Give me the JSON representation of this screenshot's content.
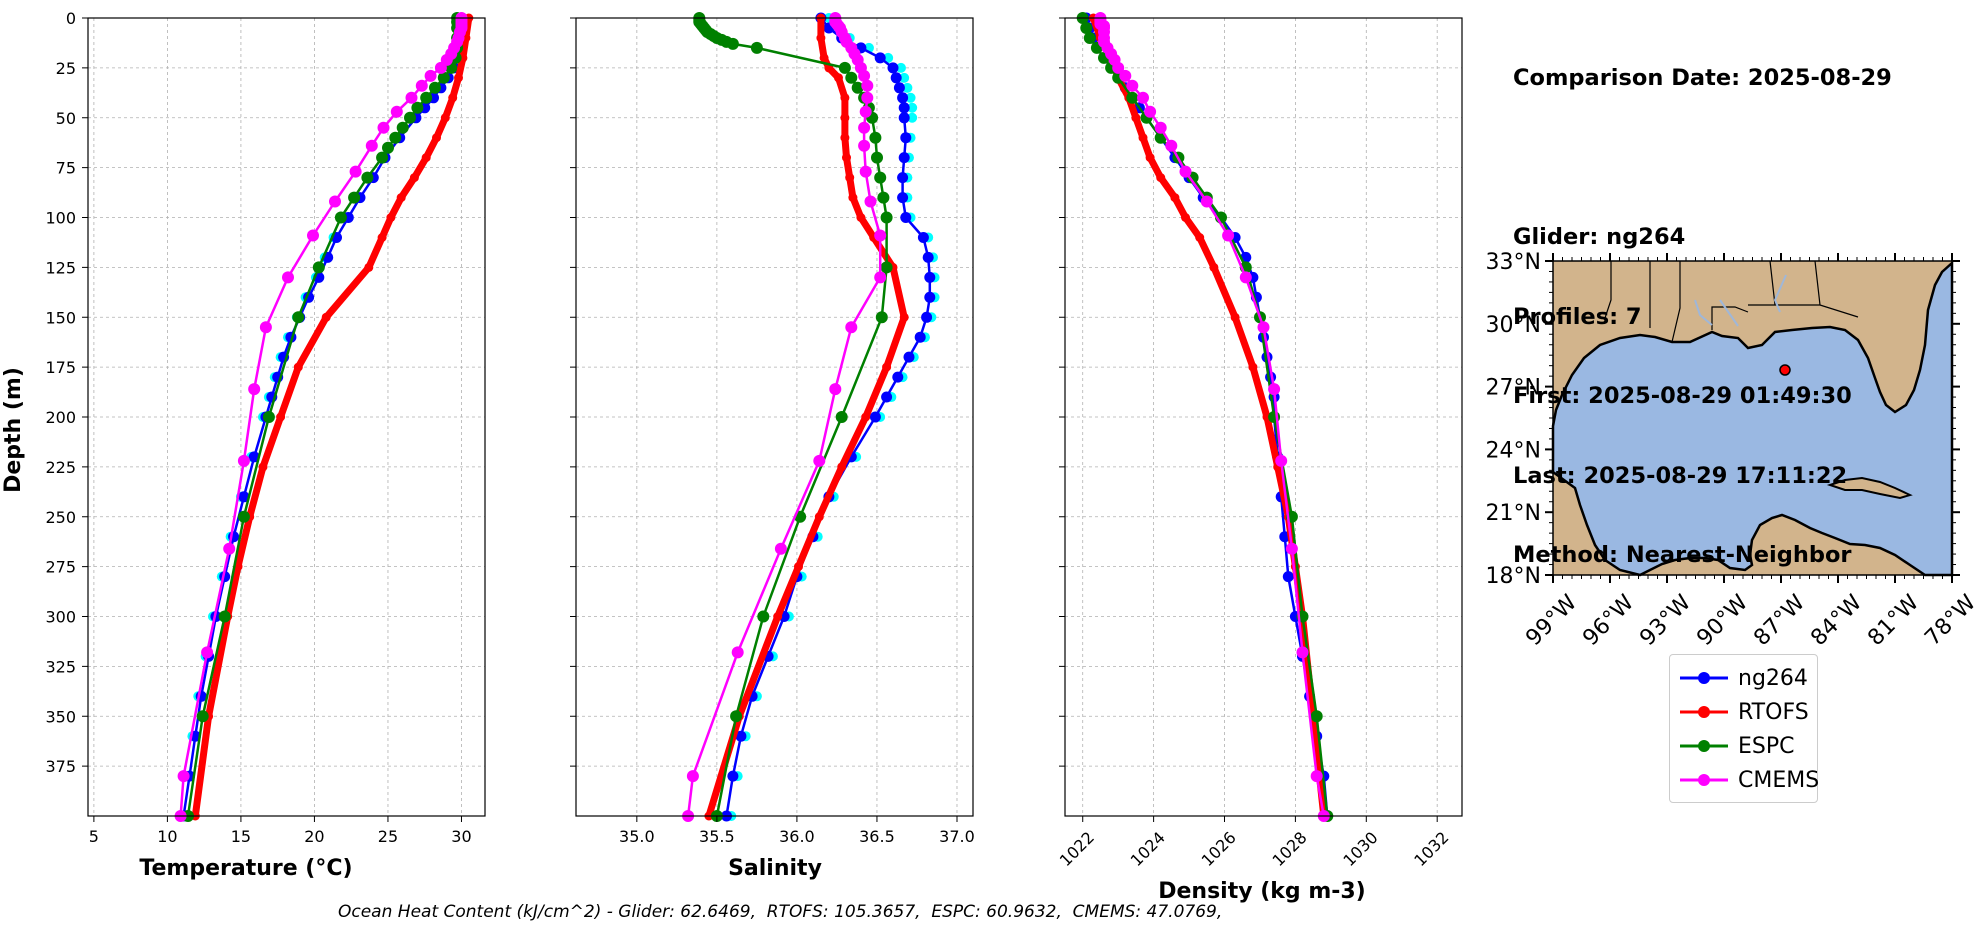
{
  "chart_data": [
    {
      "type": "line",
      "xlabel": "Temperature (°C)",
      "ylabel": "Depth (m)",
      "xlim": [
        4.6,
        31.6
      ],
      "ylim": [
        400,
        0
      ],
      "xticks": [
        "5",
        "10",
        "15",
        "20",
        "25",
        "30"
      ],
      "yticks": [
        "0",
        "25",
        "50",
        "75",
        "100",
        "125",
        "150",
        "175",
        "200",
        "225",
        "250",
        "275",
        "300",
        "325",
        "350",
        "375"
      ],
      "grid": true,
      "series": [
        {
          "name": "ng264",
          "color": "#0000ff",
          "depth": [
            1,
            5,
            10,
            15,
            20,
            25,
            30,
            35,
            40,
            45,
            50,
            60,
            70,
            80,
            90,
            100,
            110,
            120,
            130,
            140,
            150,
            160,
            170,
            180,
            190,
            200,
            220,
            240,
            260,
            280,
            300,
            320,
            340,
            360,
            380,
            400
          ],
          "values": [
            30.2,
            30.2,
            30.1,
            30.0,
            29.8,
            29.5,
            29.1,
            28.6,
            28.1,
            27.5,
            26.9,
            25.8,
            24.8,
            24.0,
            23.1,
            22.3,
            21.5,
            20.9,
            20.3,
            19.6,
            19.0,
            18.4,
            17.9,
            17.5,
            17.1,
            16.7,
            15.9,
            15.2,
            14.5,
            13.9,
            13.3,
            12.8,
            12.3,
            11.9,
            11.5,
            11.1
          ]
        },
        {
          "name": "RTOFS",
          "color": "#ff0000",
          "depth": [
            0,
            10,
            20,
            30,
            40,
            50,
            60,
            70,
            80,
            90,
            100,
            110,
            125,
            150,
            175,
            200,
            225,
            250,
            275,
            300,
            350,
            400
          ],
          "values": [
            30.5,
            30.3,
            30.1,
            29.8,
            29.4,
            28.9,
            28.3,
            27.6,
            26.8,
            25.9,
            25.2,
            24.6,
            23.7,
            20.8,
            18.9,
            17.7,
            16.5,
            15.6,
            14.8,
            14.1,
            12.8,
            11.9
          ]
        },
        {
          "name": "ESPC",
          "color": "#008000",
          "depth": [
            0,
            2,
            5,
            10,
            15,
            20,
            25,
            30,
            35,
            40,
            45,
            50,
            55,
            60,
            65,
            70,
            80,
            90,
            100,
            125,
            150,
            200,
            250,
            300,
            350,
            400
          ],
          "values": [
            29.7,
            29.7,
            29.7,
            29.7,
            29.7,
            29.6,
            29.3,
            28.8,
            28.2,
            27.6,
            27.0,
            26.5,
            26.0,
            25.5,
            25.0,
            24.6,
            23.6,
            22.7,
            21.8,
            20.3,
            18.9,
            16.9,
            15.2,
            13.9,
            12.4,
            11.4
          ]
        },
        {
          "name": "CMEMS",
          "color": "#ff00ff",
          "depth": [
            0,
            1,
            2,
            3,
            4,
            5,
            7,
            10,
            12,
            15,
            18,
            21,
            25,
            29,
            34,
            40,
            47,
            55,
            64,
            77,
            92,
            109,
            130,
            155,
            186,
            222,
            266,
            318,
            380,
            400
          ],
          "values": [
            30.0,
            30.0,
            30.0,
            30.0,
            30.0,
            30.0,
            29.9,
            29.8,
            29.7,
            29.5,
            29.3,
            29.0,
            28.6,
            27.9,
            27.3,
            26.6,
            25.6,
            24.7,
            23.9,
            22.8,
            21.4,
            19.9,
            18.2,
            16.7,
            15.9,
            15.2,
            14.2,
            12.7,
            11.1,
            10.9
          ]
        }
      ]
    },
    {
      "type": "line",
      "xlabel": "Salinity",
      "xlim": [
        34.62,
        37.1
      ],
      "ylim": [
        400,
        0
      ],
      "xticks": [
        "35.0",
        "35.5",
        "36.0",
        "36.5",
        "37.0"
      ],
      "grid": true,
      "series": [
        {
          "name": "ng264",
          "color": "#0000ff",
          "depth": [
            0,
            5,
            10,
            15,
            20,
            25,
            30,
            35,
            40,
            45,
            50,
            60,
            70,
            80,
            90,
            100,
            110,
            120,
            130,
            140,
            150,
            160,
            170,
            180,
            190,
            200,
            220,
            240,
            260,
            280,
            300,
            320,
            340,
            360,
            380,
            400
          ],
          "values": [
            36.15,
            36.2,
            36.28,
            36.4,
            36.52,
            36.6,
            36.62,
            36.64,
            36.66,
            36.67,
            36.67,
            36.68,
            36.67,
            36.66,
            36.66,
            36.68,
            36.79,
            36.82,
            36.83,
            36.83,
            36.81,
            36.77,
            36.7,
            36.63,
            36.56,
            36.49,
            36.34,
            36.2,
            36.1,
            36.0,
            35.92,
            35.82,
            35.72,
            35.65,
            35.6,
            35.56
          ]
        },
        {
          "name": "RTOFS",
          "color": "#ff0000",
          "depth": [
            0,
            10,
            20,
            25,
            30,
            40,
            50,
            60,
            70,
            80,
            90,
            100,
            110,
            125,
            150,
            175,
            200,
            225,
            250,
            275,
            300,
            350,
            400
          ],
          "values": [
            36.15,
            36.15,
            36.17,
            36.2,
            36.26,
            36.3,
            36.3,
            36.3,
            36.31,
            36.33,
            36.35,
            36.4,
            36.48,
            36.6,
            36.67,
            36.56,
            36.43,
            36.28,
            36.14,
            36.01,
            35.88,
            35.64,
            35.45
          ]
        },
        {
          "name": "ESPC",
          "color": "#008000",
          "depth": [
            0,
            1,
            2,
            3,
            4,
            5,
            6,
            7,
            8,
            9,
            10,
            11,
            12,
            13,
            15,
            25,
            30,
            35,
            40,
            45,
            50,
            60,
            70,
            80,
            90,
            100,
            125,
            150,
            200,
            250,
            300,
            350,
            400
          ],
          "values": [
            35.39,
            35.39,
            35.39,
            35.4,
            35.41,
            35.42,
            35.43,
            35.44,
            35.46,
            35.48,
            35.5,
            35.53,
            35.56,
            35.6,
            35.75,
            36.3,
            36.34,
            36.38,
            36.42,
            36.45,
            36.47,
            36.49,
            36.5,
            36.52,
            36.54,
            36.56,
            36.56,
            36.53,
            36.28,
            36.02,
            35.79,
            35.62,
            35.5
          ]
        },
        {
          "name": "CMEMS",
          "color": "#ff00ff",
          "depth": [
            0,
            1,
            2,
            3,
            4,
            5,
            7,
            10,
            12,
            15,
            18,
            21,
            25,
            29,
            34,
            40,
            47,
            55,
            64,
            77,
            92,
            109,
            130,
            155,
            186,
            222,
            266,
            318,
            380,
            400
          ],
          "values": [
            36.24,
            36.24,
            36.24,
            36.25,
            36.26,
            36.27,
            36.28,
            36.3,
            36.31,
            36.34,
            36.36,
            36.38,
            36.4,
            36.42,
            36.44,
            36.44,
            36.43,
            36.42,
            36.42,
            36.43,
            36.46,
            36.52,
            36.52,
            36.34,
            36.24,
            36.14,
            35.9,
            35.63,
            35.35,
            35.32
          ]
        }
      ]
    },
    {
      "type": "line",
      "xlabel": "Density (kg m-3)",
      "xlim": [
        1021.5,
        1032.7
      ],
      "ylim": [
        400,
        0
      ],
      "xticks": [
        "1022",
        "1024",
        "1026",
        "1028",
        "1030",
        "1032"
      ],
      "grid": true,
      "series": [
        {
          "name": "ng264",
          "color": "#0000ff",
          "depth": [
            0,
            5,
            10,
            15,
            20,
            25,
            30,
            35,
            40,
            45,
            50,
            60,
            70,
            80,
            90,
            100,
            110,
            120,
            130,
            140,
            150,
            160,
            170,
            180,
            190,
            200,
            220,
            240,
            260,
            280,
            300,
            320,
            340,
            360,
            380,
            400
          ],
          "values": [
            1022.1,
            1022.2,
            1022.3,
            1022.4,
            1022.6,
            1022.8,
            1023.0,
            1023.2,
            1023.4,
            1023.6,
            1023.8,
            1024.2,
            1024.6,
            1025.0,
            1025.4,
            1025.9,
            1026.3,
            1026.6,
            1026.8,
            1026.9,
            1027.0,
            1027.1,
            1027.2,
            1027.3,
            1027.4,
            1027.4,
            1027.5,
            1027.6,
            1027.7,
            1027.8,
            1028.0,
            1028.2,
            1028.4,
            1028.6,
            1028.8,
            1028.9
          ]
        },
        {
          "name": "RTOFS",
          "color": "#ff0000",
          "depth": [
            0,
            10,
            20,
            25,
            30,
            40,
            50,
            60,
            70,
            80,
            90,
            100,
            110,
            125,
            150,
            175,
            200,
            225,
            250,
            275,
            300,
            350,
            400
          ],
          "values": [
            1022.3,
            1022.5,
            1022.8,
            1022.9,
            1023.0,
            1023.3,
            1023.5,
            1023.7,
            1023.9,
            1024.2,
            1024.6,
            1024.9,
            1025.3,
            1025.7,
            1026.3,
            1026.8,
            1027.2,
            1027.5,
            1027.8,
            1028.0,
            1028.2,
            1028.5,
            1028.8
          ]
        },
        {
          "name": "ESPC",
          "color": "#008000",
          "depth": [
            0,
            5,
            10,
            15,
            20,
            25,
            30,
            40,
            50,
            60,
            70,
            80,
            90,
            100,
            125,
            150,
            200,
            250,
            300,
            350,
            400
          ],
          "values": [
            1022.0,
            1022.1,
            1022.2,
            1022.4,
            1022.6,
            1022.8,
            1023.0,
            1023.4,
            1023.8,
            1024.2,
            1024.7,
            1025.1,
            1025.5,
            1025.9,
            1026.6,
            1027.0,
            1027.4,
            1027.9,
            1028.2,
            1028.6,
            1028.9
          ]
        },
        {
          "name": "CMEMS",
          "color": "#ff00ff",
          "depth": [
            0,
            1,
            2,
            3,
            4,
            5,
            7,
            10,
            12,
            15,
            18,
            21,
            25,
            29,
            34,
            40,
            47,
            55,
            64,
            77,
            92,
            109,
            130,
            155,
            186,
            222,
            266,
            318,
            380,
            400
          ],
          "values": [
            1022.5,
            1022.5,
            1022.5,
            1022.5,
            1022.6,
            1022.6,
            1022.6,
            1022.6,
            1022.6,
            1022.7,
            1022.8,
            1022.9,
            1023.0,
            1023.2,
            1023.4,
            1023.7,
            1023.9,
            1024.2,
            1024.5,
            1024.9,
            1025.5,
            1026.1,
            1026.6,
            1027.1,
            1027.4,
            1027.6,
            1027.9,
            1028.2,
            1028.6,
            1028.8
          ]
        }
      ]
    }
  ],
  "info": {
    "comparison": "Comparison Date: 2025-08-29",
    "glider": "Glider: ng264",
    "profiles": "Profiles: 7",
    "first": "First: 2025-08-29 01:49:30",
    "last": "Last: 2025-08-29 17:11:22",
    "method": "Method: Nearest-Neighbor"
  },
  "map": {
    "lat_ticks": [
      "33°N",
      "30°N",
      "27°N",
      "24°N",
      "21°N",
      "18°N"
    ],
    "lon_ticks": [
      "99°W",
      "96°W",
      "93°W",
      "90°W",
      "87°W",
      "84°W",
      "81°W",
      "78°W"
    ],
    "marker": {
      "lon": -86.8,
      "lat": 28.0
    },
    "land_color": "#d2b48c",
    "ocean_color": "#9ab8e2"
  },
  "legend": [
    "ng264",
    "RTOFS",
    "ESPC",
    "CMEMS"
  ],
  "footer": "Ocean Heat Content (kJ/cm^2) - Glider: 62.6469,  RTOFS: 105.3657,  ESPC: 60.9632,  CMEMS: 47.0769,"
}
